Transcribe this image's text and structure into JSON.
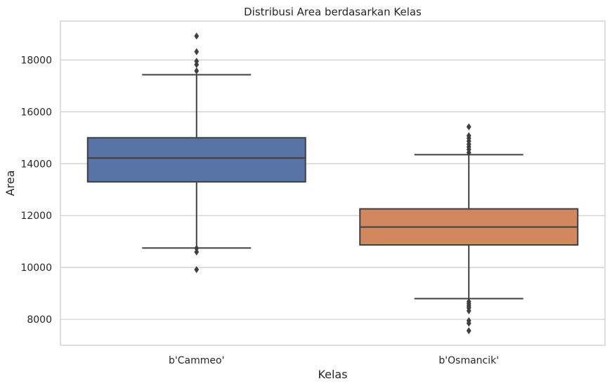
{
  "chart_data": {
    "type": "box",
    "title": "Distribusi Area berdasarkan Kelas",
    "xlabel": "Kelas",
    "ylabel": "Area",
    "ylim": [
      7000,
      19500
    ],
    "yticks": [
      8000,
      10000,
      12000,
      14000,
      16000,
      18000
    ],
    "grid": "horizontal",
    "categories": [
      "b'Cammeo'",
      "b'Osmancik'"
    ],
    "boxes": [
      {
        "category": "b'Cammeo'",
        "color": "#5874A6",
        "whisker_low": 10750,
        "q1": 13300,
        "median": 14220,
        "q3": 15000,
        "whisker_high": 17430,
        "outliers": [
          17580,
          17820,
          17950,
          18320,
          18920,
          10740,
          10600,
          9920
        ]
      },
      {
        "category": "b'Osmancik'",
        "color": "#D1885F",
        "whisker_low": 8800,
        "q1": 10870,
        "median": 11560,
        "q3": 12260,
        "whisker_high": 14350,
        "outliers": [
          14430,
          14550,
          14650,
          14750,
          14870,
          14980,
          15080,
          15420,
          8680,
          8600,
          8520,
          8440,
          8330,
          7950,
          7850,
          7560
        ]
      }
    ]
  }
}
